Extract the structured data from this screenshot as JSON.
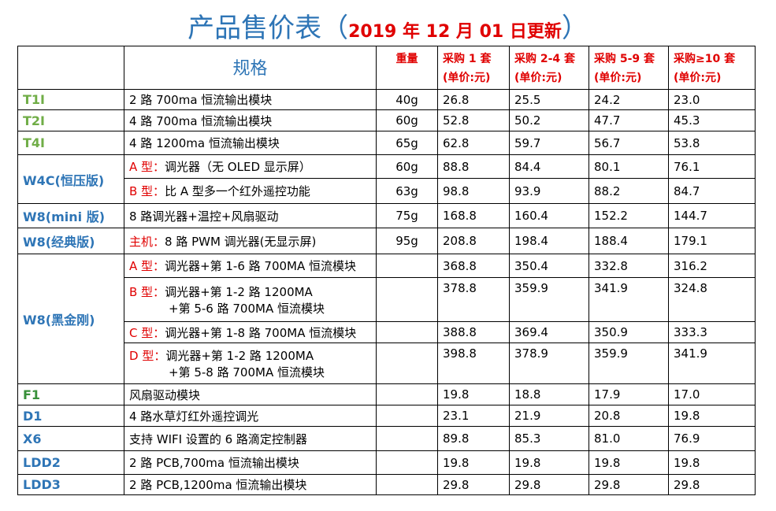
{
  "title": {
    "lead": "产品售价表（",
    "date": "2019 年 12 月 01 日更新",
    "tail": "）"
  },
  "table": {
    "headers": {
      "spec": "规格",
      "weight": "重量",
      "prices": [
        [
          "采购 1 套",
          "(单价:元)"
        ],
        [
          "采购 2-4 套",
          "(单价:元)"
        ],
        [
          "采购 5-9 套",
          "(单价:元)"
        ],
        [
          "采购≥10 套",
          "(单价:元)"
        ]
      ]
    },
    "groups": [
      {
        "model": "T1I",
        "color": "green",
        "rows": [
          {
            "spec": [
              "2 路 700ma 恒流输出模块"
            ],
            "weight": "40g",
            "prices": [
              "26.8",
              "25.5",
              "24.2",
              "23.0"
            ]
          }
        ]
      },
      {
        "model": "T2I",
        "color": "green",
        "rows": [
          {
            "spec": [
              "4 路 700ma 恒流输出模块"
            ],
            "weight": "60g",
            "prices": [
              "52.8",
              "50.2",
              "47.7",
              "45.3"
            ]
          }
        ]
      },
      {
        "model": "T4I",
        "color": "green",
        "rows": [
          {
            "spec": [
              "4 路 1200ma 恒流输出模块"
            ],
            "weight": "65g",
            "prices": [
              "62.8",
              "59.7",
              "56.7",
              "53.8"
            ]
          }
        ]
      },
      {
        "model": "W4C(恒压版)",
        "color": "blue",
        "rows": [
          {
            "prefix": "A 型：",
            "spec": [
              "调光器（无 OLED 显示屏）"
            ],
            "weight": "60g",
            "prices": [
              "88.8",
              "84.4",
              "80.1",
              "76.1"
            ]
          },
          {
            "prefix": "B 型：",
            "spec": [
              "比 A 型多一个红外遥控功能"
            ],
            "weight": "63g",
            "prices": [
              "98.8",
              "93.9",
              "88.2",
              "84.7"
            ]
          }
        ]
      },
      {
        "model": "W8(mini 版)",
        "color": "blue",
        "rows": [
          {
            "spec": [
              "8 路调光器+温控+风扇驱动"
            ],
            "weight": "75g",
            "prices": [
              "168.8",
              "160.4",
              "152.2",
              "144.7"
            ]
          }
        ]
      },
      {
        "model": "W8(经典版)",
        "color": "blue",
        "rows": [
          {
            "prefix": "主机：",
            "spec": [
              "8 路 PWM 调光器(无显示屏)"
            ],
            "weight": "95g",
            "prices": [
              "208.8",
              "198.4",
              "188.4",
              "179.1"
            ]
          }
        ]
      },
      {
        "model": "W8(黑金刚)",
        "color": "blue",
        "rows": [
          {
            "prefix": "A 型：",
            "spec": [
              "调光器+第 1-6 路 700MA 恒流模块"
            ],
            "prices": [
              "368.8",
              "350.4",
              "332.8",
              "316.2"
            ]
          },
          {
            "prefix": "B 型：",
            "spec": [
              "调光器+第 1-2 路 1200MA",
              "+第 5-6 路 700MA 恒流模块"
            ],
            "prices": [
              "378.8",
              "359.9",
              "341.9",
              "324.8"
            ]
          },
          {
            "prefix": "C 型：",
            "spec": [
              "调光器+第 1-8 路 700MA 恒流模块"
            ],
            "prices": [
              "388.8",
              "369.4",
              "350.9",
              "333.3"
            ]
          },
          {
            "prefix": "D 型：",
            "spec": [
              "调光器+第 1-2 路 1200MA",
              "+第 5-8 路 700MA 恒流模块"
            ],
            "prices": [
              "398.8",
              "378.9",
              "359.9",
              "341.9"
            ]
          }
        ]
      },
      {
        "model": "F1",
        "color": "darkgreen",
        "rows": [
          {
            "spec": [
              "风扇驱动模块"
            ],
            "prices": [
              "19.8",
              "18.8",
              "17.9",
              "17.0"
            ]
          }
        ]
      },
      {
        "model": "D1",
        "color": "blue",
        "rows": [
          {
            "spec": [
              "4 路水草灯红外遥控调光"
            ],
            "prices": [
              "23.1",
              "21.9",
              "20.8",
              "19.8"
            ]
          }
        ]
      },
      {
        "model": "X6",
        "color": "blue",
        "rows": [
          {
            "spec": [
              "支持 WIFI 设置的 6 路滴定控制器"
            ],
            "prices": [
              "89.8",
              "85.3",
              "81.0",
              "76.9"
            ]
          }
        ]
      },
      {
        "model": "LDD2",
        "color": "blue",
        "rows": [
          {
            "spec": [
              "2 路 PCB,700ma 恒流输出模块"
            ],
            "prices": [
              "19.8",
              "19.8",
              "19.8",
              "19.8"
            ]
          }
        ]
      },
      {
        "model": "LDD3",
        "color": "blue",
        "rows": [
          {
            "spec": [
              "2 路 PCB,1200ma 恒流输出模块"
            ],
            "prices": [
              "29.8",
              "29.8",
              "29.8",
              "29.8"
            ]
          }
        ]
      }
    ]
  }
}
